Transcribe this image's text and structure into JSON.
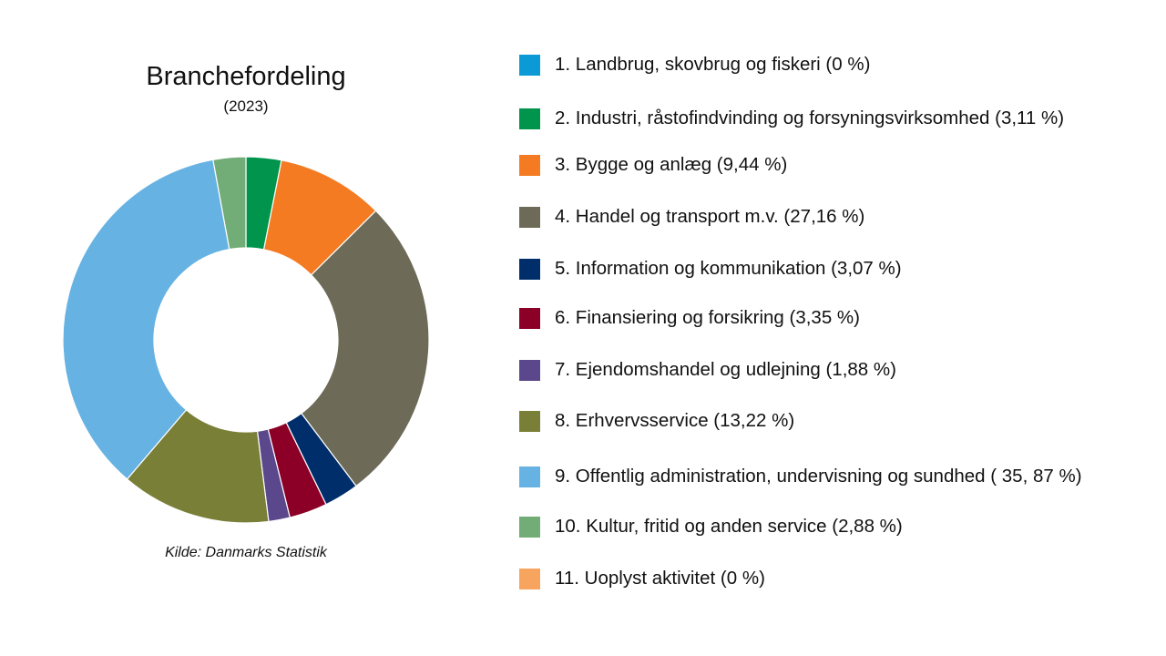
{
  "chart_data": {
    "type": "pie",
    "title": "Branchefordeling",
    "subtitle": "(2023)",
    "source": "Kilde: Danmarks Statistik",
    "legend_position": "right",
    "categories": [
      "1. Landbrug, skovbrug og fiskeri",
      "2. Industri, råstofindvinding og forsyningsvirksomhed",
      "3. Bygge og anlæg",
      "4. Handel og transport m.v.",
      "5. Information og kommunikation",
      "6. Finansiering og forsikring",
      "7. Ejendomshandel og udlejning",
      "8. Erhvervsservice",
      "9. Offentlig administration, undervisning og sundhed",
      "10. Kultur, fritid og anden service",
      "11. Uoplyst aktivitet"
    ],
    "values": [
      0,
      3.11,
      9.44,
      27.16,
      3.07,
      3.35,
      1.88,
      13.22,
      35.87,
      2.88,
      0
    ],
    "colors": [
      "#0b9ad6",
      "#00944c",
      "#f47b22",
      "#6d6a58",
      "#002e6b",
      "#8c0028",
      "#5b488c",
      "#7a7f38",
      "#66b2e2",
      "#72ac76",
      "#f7a45e"
    ],
    "legend_labels": [
      "1. Landbrug, skovbrug og fiskeri (0 %)",
      "2. Industri, råstofindvinding og forsyningsvirksomhed (3,11 %)",
      "3. Bygge og anlæg (9,44 %)",
      "4. Handel og transport m.v. (27,16 %)",
      "5. Information og kommunikation (3,07 %)",
      "6. Finansiering og forsikring (3,35 %)",
      "7. Ejendomshandel og udlejning (1,88 %)",
      "8. Erhvervsservice (13,22 %)",
      "9. Offentlig administration, undervisning og sundhed ( 35, 87 %)",
      "10. Kultur, fritid og anden service (2,88 %)",
      "11. Uoplyst aktivitet (0 %)"
    ],
    "donut": true
  }
}
